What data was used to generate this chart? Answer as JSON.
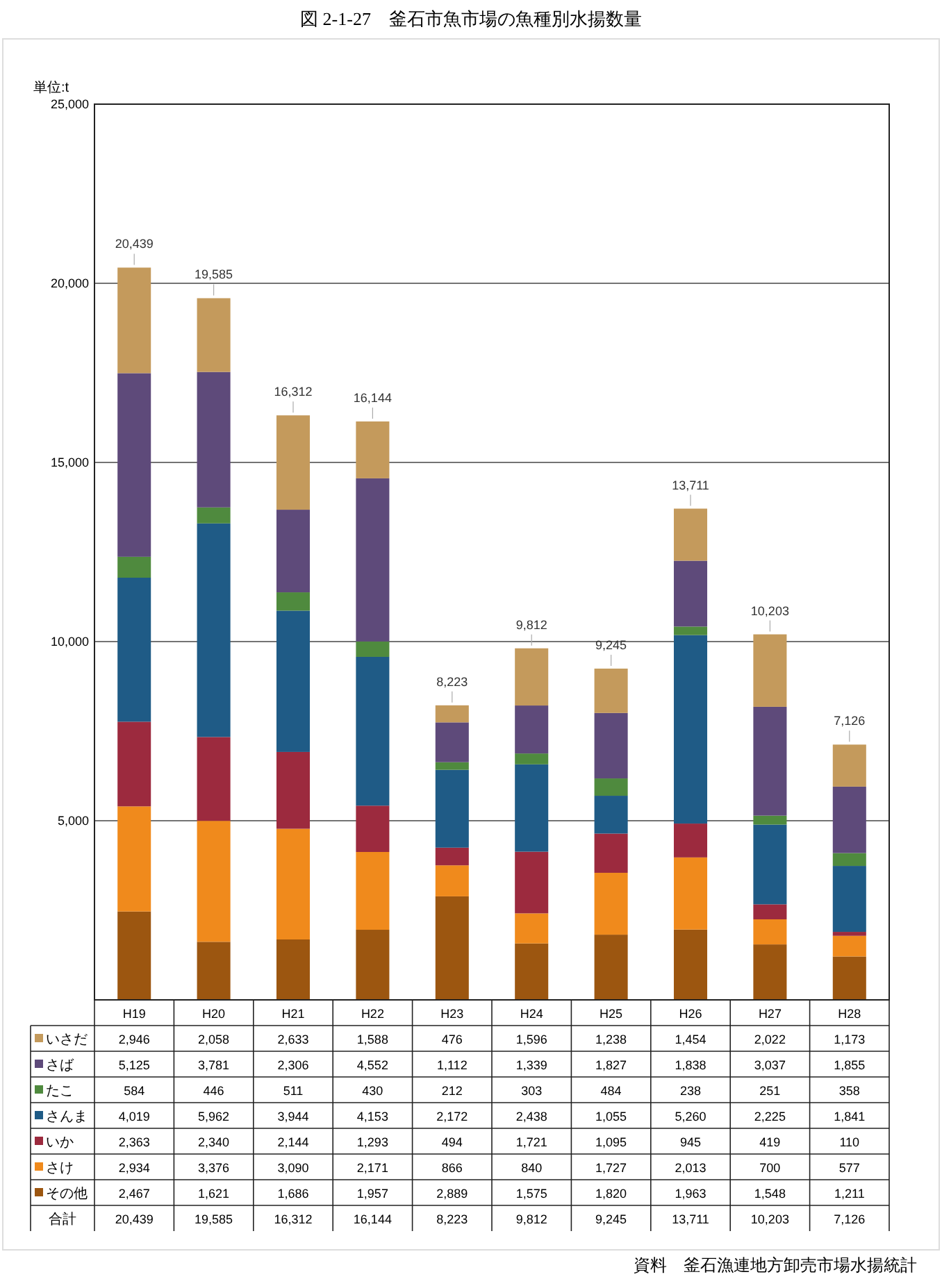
{
  "chart_data": {
    "type": "bar",
    "stacked": true,
    "title": "図 2-1-27　釜石市魚市場の魚種別水揚数量",
    "ylabel": "単位:t",
    "categories": [
      "H19",
      "H20",
      "H21",
      "H22",
      "H23",
      "H24",
      "H25",
      "H26",
      "H27",
      "H28"
    ],
    "series": [
      {
        "name": "その他",
        "color": "#9c5610",
        "values": [
          2467,
          1621,
          1686,
          1957,
          2889,
          1575,
          1820,
          1963,
          1548,
          1211
        ],
        "value_labels": [
          "2,467",
          "1,621",
          "1,686",
          "1,957",
          "2,889",
          "1,575",
          "1,820",
          "1,963",
          "1,548",
          "1,211"
        ]
      },
      {
        "name": "さけ",
        "color": "#f08a1c",
        "values": [
          2934,
          3376,
          3090,
          2171,
          866,
          840,
          1727,
          2013,
          700,
          577
        ],
        "value_labels": [
          "2,934",
          "3,376",
          "3,090",
          "2,171",
          "866",
          "840",
          "1,727",
          "2,013",
          "700",
          "577"
        ]
      },
      {
        "name": "いか",
        "color": "#9c2a3e",
        "values": [
          2363,
          2340,
          2144,
          1293,
          494,
          1721,
          1095,
          945,
          419,
          110
        ],
        "value_labels": [
          "2,363",
          "2,340",
          "2,144",
          "1,293",
          "494",
          "1,721",
          "1,095",
          "945",
          "419",
          "110"
        ]
      },
      {
        "name": "さんま",
        "color": "#1f5b86",
        "values": [
          4019,
          5962,
          3944,
          4153,
          2172,
          2438,
          1055,
          5260,
          2225,
          1841
        ],
        "value_labels": [
          "4,019",
          "5,962",
          "3,944",
          "4,153",
          "2,172",
          "2,438",
          "1,055",
          "5,260",
          "2,225",
          "1,841"
        ]
      },
      {
        "name": "たこ",
        "color": "#4f8a3e",
        "values": [
          584,
          446,
          511,
          430,
          212,
          303,
          484,
          238,
          251,
          358
        ],
        "value_labels": [
          "584",
          "446",
          "511",
          "430",
          "212",
          "303",
          "484",
          "238",
          "251",
          "358"
        ]
      },
      {
        "name": "さば",
        "color": "#5e4a7a",
        "values": [
          5125,
          3781,
          2306,
          4552,
          1112,
          1339,
          1827,
          1838,
          3037,
          1855
        ],
        "value_labels": [
          "5,125",
          "3,781",
          "2,306",
          "4,552",
          "1,112",
          "1,339",
          "1,827",
          "1,838",
          "3,037",
          "1,855"
        ]
      },
      {
        "name": "いさだ",
        "color": "#c49a5c",
        "values": [
          2946,
          2058,
          2633,
          1588,
          476,
          1596,
          1238,
          1454,
          2022,
          1173
        ],
        "value_labels": [
          "2,946",
          "2,058",
          "2,633",
          "1,588",
          "476",
          "1,596",
          "1,238",
          "1,454",
          "2,022",
          "1,173"
        ]
      }
    ],
    "totals": [
      "20,439",
      "19,585",
      "16,312",
      "16,144",
      "8,223",
      "9,812",
      "9,245",
      "13,711",
      "10,203",
      "7,126"
    ],
    "legend": "bottom",
    "grid": "y",
    "ylim": [
      0,
      25000
    ],
    "yticks": [
      {
        "value": 5000,
        "label": "5,000"
      },
      {
        "value": 10000,
        "label": "10,000"
      },
      {
        "value": 15000,
        "label": "15,000"
      },
      {
        "value": 20000,
        "label": "20,000"
      },
      {
        "value": 25000,
        "label": "25,000"
      }
    ],
    "annotations": [
      "合計",
      "資料　釜石漁連地方卸売市場水揚統計"
    ]
  }
}
